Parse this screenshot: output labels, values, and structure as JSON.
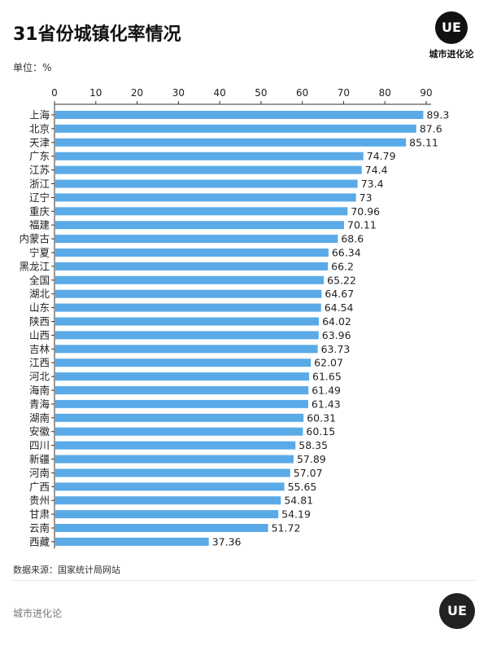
{
  "header": {
    "title": "31省份城镇化率情况",
    "unit_label": "单位：%"
  },
  "brand": {
    "logo_text": "UE",
    "name": "城市进化论"
  },
  "colors": {
    "bar": "#5aaae8",
    "axis": "#333333",
    "text": "#222222"
  },
  "chart_data": {
    "type": "bar",
    "orientation": "horizontal",
    "title": "31省份城镇化率情况",
    "unit": "%",
    "xlim": [
      0,
      90
    ],
    "x_ticks": [
      0,
      10,
      20,
      30,
      40,
      50,
      60,
      70,
      80,
      90
    ],
    "x_axis_position": "top",
    "grid": false,
    "categories": [
      "上海",
      "北京",
      "天津",
      "广东",
      "江苏",
      "浙江",
      "辽宁",
      "重庆",
      "福建",
      "内蒙古",
      "宁夏",
      "黑龙江",
      "全国",
      "湖北",
      "山东",
      "陕西",
      "山西",
      "吉林",
      "江西",
      "河北",
      "海南",
      "青海",
      "湖南",
      "安徽",
      "四川",
      "新疆",
      "河南",
      "广西",
      "贵州",
      "甘肃",
      "云南",
      "西藏"
    ],
    "values": [
      89.3,
      87.6,
      85.11,
      74.79,
      74.4,
      73.4,
      73,
      70.96,
      70.11,
      68.6,
      66.34,
      66.2,
      65.22,
      64.67,
      64.54,
      64.02,
      63.96,
      63.73,
      62.07,
      61.65,
      61.49,
      61.43,
      60.31,
      60.15,
      58.35,
      57.89,
      57.07,
      55.65,
      54.81,
      54.19,
      51.72,
      37.36
    ],
    "value_labels": [
      "89.3",
      "87.6",
      "85.11",
      "74.79",
      "74.4",
      "73.4",
      "73",
      "70.96",
      "70.11",
      "68.6",
      "66.34",
      "66.2",
      "65.22",
      "64.67",
      "64.54",
      "64.02",
      "63.96",
      "63.73",
      "62.07",
      "61.65",
      "61.49",
      "61.43",
      "60.31",
      "60.15",
      "58.35",
      "57.89",
      "57.07",
      "55.65",
      "54.81",
      "54.19",
      "51.72",
      "37.36"
    ]
  },
  "footer": {
    "source": "数据来源：国家统计局网站",
    "brand": "城市进化论",
    "logo_text": "UE"
  }
}
